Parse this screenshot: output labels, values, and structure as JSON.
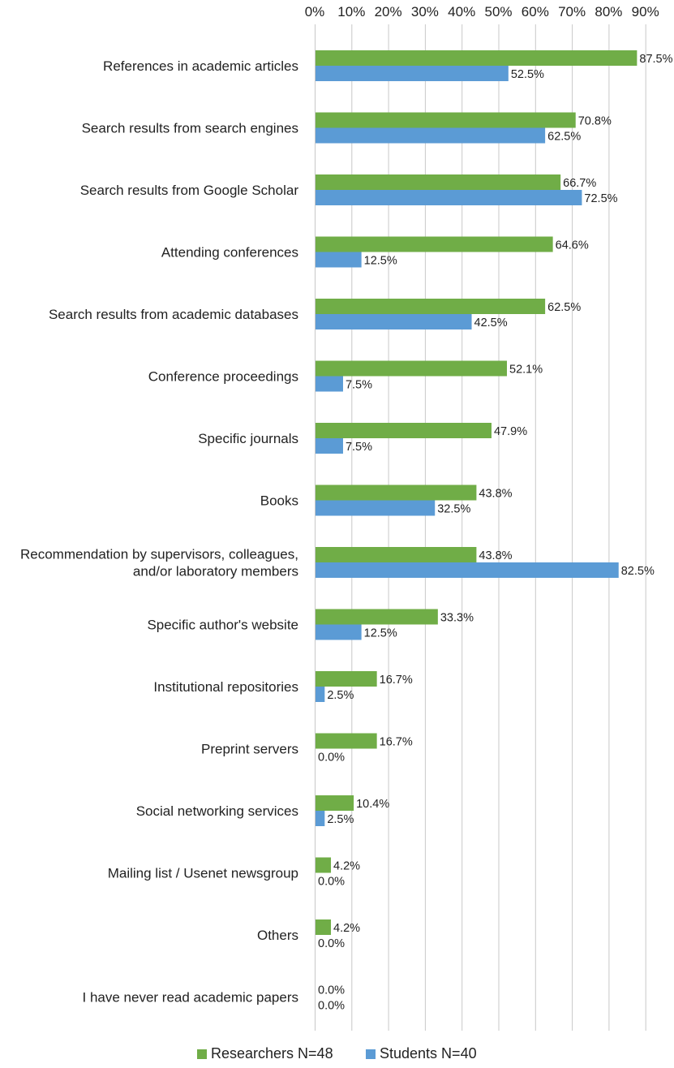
{
  "chart_data": {
    "type": "bar",
    "orientation": "horizontal",
    "title": "",
    "xlabel": "",
    "ylabel": "",
    "xlim": [
      0,
      90
    ],
    "x_ticks": [
      0,
      10,
      20,
      30,
      40,
      50,
      60,
      70,
      80,
      90
    ],
    "x_tick_labels": [
      "0%",
      "10%",
      "20%",
      "30%",
      "40%",
      "50%",
      "60%",
      "70%",
      "80%",
      "90%"
    ],
    "x_axis_position": "top",
    "grid": true,
    "legend_position": "bottom",
    "categories": [
      [
        "References in academic articles"
      ],
      [
        "Search results from search engines"
      ],
      [
        "Search results from Google Scholar"
      ],
      [
        "Attending conferences"
      ],
      [
        "Search results from academic databases"
      ],
      [
        "Conference proceedings"
      ],
      [
        "Specific journals"
      ],
      [
        "Books"
      ],
      [
        "Recommendation by supervisors, colleagues,",
        "and/or laboratory members"
      ],
      [
        "Specific author's website"
      ],
      [
        "Institutional repositories"
      ],
      [
        "Preprint servers"
      ],
      [
        "Social networking services"
      ],
      [
        "Mailing list / Usenet newsgroup"
      ],
      [
        "Others"
      ],
      [
        "I have never read academic papers"
      ]
    ],
    "series": [
      {
        "name": "Researchers N=48",
        "color": "#70ad47",
        "values": [
          87.5,
          70.8,
          66.7,
          64.6,
          62.5,
          52.1,
          47.9,
          43.8,
          43.8,
          33.3,
          16.7,
          16.7,
          10.4,
          4.2,
          4.2,
          0.0
        ],
        "labels": [
          "87.5%",
          "70.8%",
          "66.7%",
          "64.6%",
          "62.5%",
          "52.1%",
          "47.9%",
          "43.8%",
          "43.8%",
          "33.3%",
          "16.7%",
          "16.7%",
          "10.4%",
          "4.2%",
          "4.2%",
          "0.0%"
        ]
      },
      {
        "name": "Students N=40",
        "color": "#5b9bd5",
        "values": [
          52.5,
          62.5,
          72.5,
          12.5,
          42.5,
          7.5,
          7.5,
          32.5,
          82.5,
          12.5,
          2.5,
          0.0,
          2.5,
          0.0,
          0.0,
          0.0
        ],
        "labels": [
          "52.5%",
          "62.5%",
          "72.5%",
          "12.5%",
          "42.5%",
          "7.5%",
          "7.5%",
          "32.5%",
          "82.5%",
          "12.5%",
          "2.5%",
          "0.0%",
          "2.5%",
          "0.0%",
          "0.0%",
          "0.0%"
        ]
      }
    ]
  }
}
